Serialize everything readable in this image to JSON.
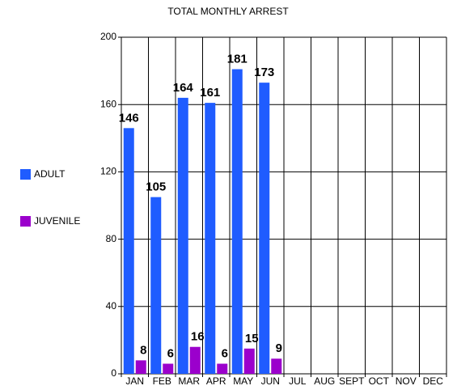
{
  "chart_data": {
    "type": "bar",
    "title": "TOTAL MONTHLY ARREST",
    "categories": [
      "JAN",
      "FEB",
      "MAR",
      "APR",
      "MAY",
      "JUN",
      "JUL",
      "AUG",
      "SEPT",
      "OCT",
      "NOV",
      "DEC"
    ],
    "series": [
      {
        "name": "ADULT",
        "color": "#1f5cff",
        "values": [
          146,
          105,
          164,
          161,
          181,
          173,
          null,
          null,
          null,
          null,
          null,
          null
        ]
      },
      {
        "name": "JUVENILE",
        "color": "#9b00cc",
        "values": [
          8,
          6,
          16,
          6,
          15,
          9,
          null,
          null,
          null,
          null,
          null,
          null
        ]
      }
    ],
    "ylim": [
      0,
      200
    ],
    "yticks": [
      0,
      40,
      80,
      120,
      160,
      200
    ],
    "grid": true,
    "legend": "left"
  }
}
